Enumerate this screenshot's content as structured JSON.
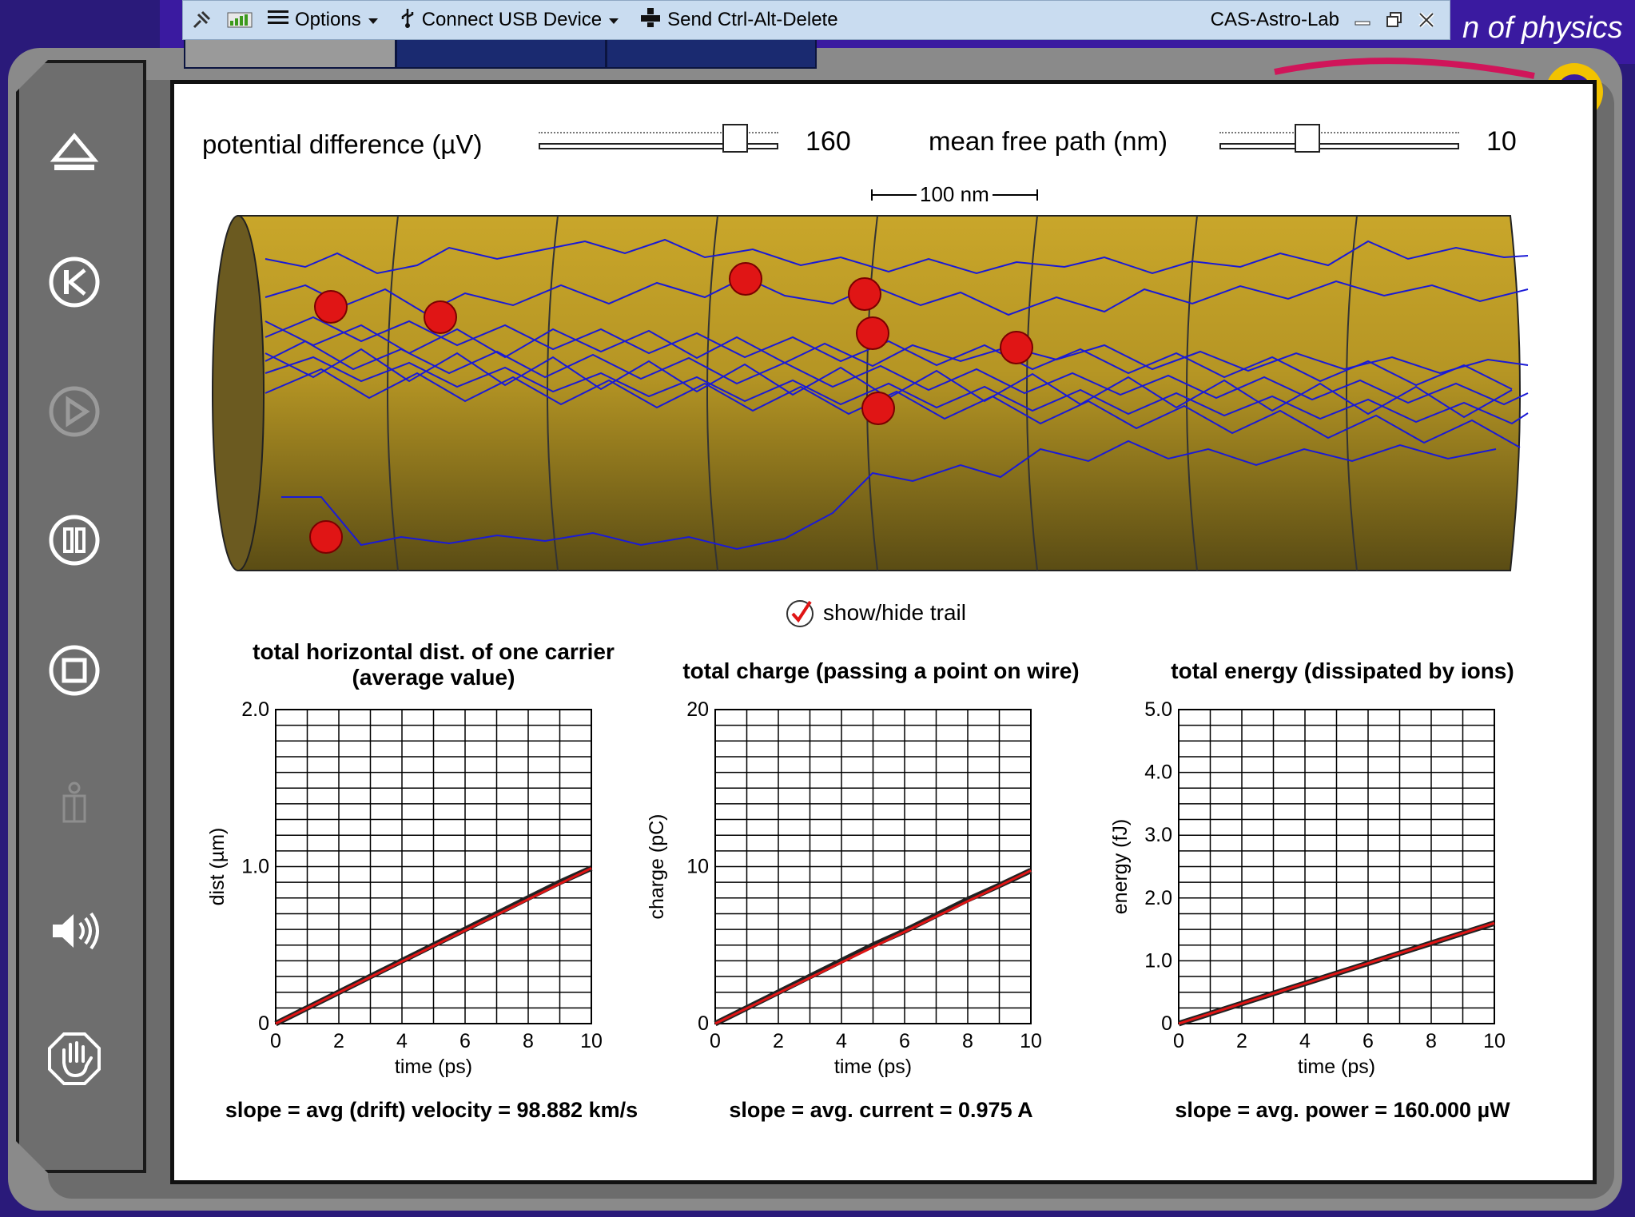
{
  "titlebar": {
    "options_label": "Options",
    "usb_label": "Connect USB Device",
    "cad_label": "Send Ctrl-Alt-Delete",
    "machine_name": "CAS-Astro-Lab"
  },
  "brand": {
    "text": "n of physics"
  },
  "controls": {
    "potential_label": "potential difference (µV)",
    "potential_value": "160",
    "potential_fraction": 0.86,
    "mfp_label": "mean free path (nm)",
    "mfp_value": "10",
    "mfp_fraction": 0.35,
    "scale_label": "100 nm"
  },
  "trail": {
    "label": "show/hide trail",
    "checked": true
  },
  "colors": {
    "wire": "#b59524",
    "trail": "#1a1ad6",
    "carrier": "#e01515",
    "fit": "#e01515",
    "data": "#222222",
    "slider_fill": "#4cd12a"
  },
  "charts": [
    {
      "title_line1": "total horizontal dist. of one carrier",
      "title_line2": "(average value)",
      "slope": "slope = avg (drift) velocity = 98.882 km/s"
    },
    {
      "title_line1": "total charge (passing a point on wire)",
      "title_line2": "",
      "slope": "slope = avg. current = 0.975 A"
    },
    {
      "title_line1": "total energy (dissipated by ions)",
      "title_line2": "",
      "slope": "slope = avg. power = 160.000 µW"
    }
  ],
  "chart_data": [
    {
      "type": "line",
      "xlabel": "time (ps)",
      "ylabel": "dist (µm)",
      "xlim": [
        0,
        10
      ],
      "ylim": [
        0,
        2.0
      ],
      "xticks": [
        "0",
        "2",
        "4",
        "6",
        "8",
        "10"
      ],
      "yticks": [
        "0",
        "1.0",
        "2.0"
      ],
      "grid": true,
      "series": [
        {
          "x": [
            0,
            1,
            2,
            3,
            4,
            5,
            6,
            7,
            8,
            9,
            10
          ],
          "y": [
            0,
            0.1,
            0.2,
            0.3,
            0.4,
            0.5,
            0.6,
            0.7,
            0.8,
            0.9,
            0.99
          ]
        }
      ]
    },
    {
      "type": "line",
      "xlabel": "time (ps)",
      "ylabel": "charge (pC)",
      "xlim": [
        0,
        10
      ],
      "ylim": [
        0,
        20
      ],
      "xticks": [
        "0",
        "2",
        "4",
        "6",
        "8",
        "10"
      ],
      "yticks": [
        "0",
        "10",
        "20"
      ],
      "grid": true,
      "series": [
        {
          "x": [
            0,
            1,
            2,
            3,
            4,
            5,
            6,
            7,
            8,
            9,
            10
          ],
          "y": [
            0,
            1.0,
            2.0,
            3.0,
            4.0,
            5.0,
            5.9,
            6.9,
            7.9,
            8.8,
            9.75
          ]
        }
      ]
    },
    {
      "type": "line",
      "xlabel": "time (ps)",
      "ylabel": "energy (fJ)",
      "xlim": [
        0,
        10
      ],
      "ylim": [
        0,
        5.0
      ],
      "xticks": [
        "0",
        "2",
        "4",
        "6",
        "8",
        "10"
      ],
      "yticks": [
        "0",
        "1.0",
        "2.0",
        "3.0",
        "4.0",
        "5.0"
      ],
      "grid": true,
      "series": [
        {
          "x": [
            0,
            1,
            2,
            3,
            4,
            5,
            6,
            7,
            8,
            9,
            10
          ],
          "y": [
            0,
            0.16,
            0.32,
            0.48,
            0.64,
            0.8,
            0.96,
            1.12,
            1.28,
            1.44,
            1.6
          ]
        }
      ]
    }
  ]
}
